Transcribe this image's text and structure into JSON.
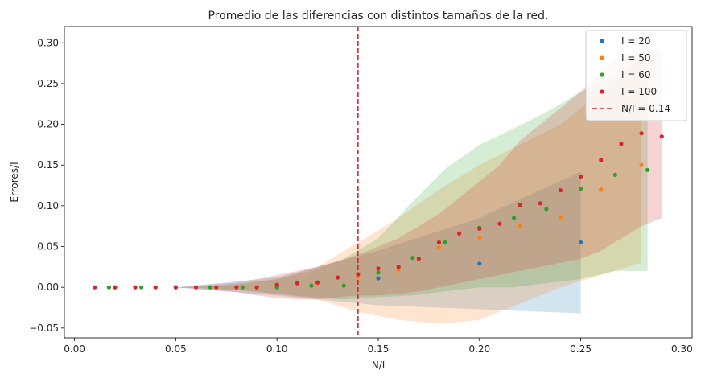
{
  "chart_data": {
    "type": "scatter",
    "title": "Promedio de las diferencias con distintos tamaños de la red.",
    "xlabel": "N/I",
    "ylabel": "Errores/I",
    "xlim": [
      -0.005,
      0.305
    ],
    "ylim": [
      -0.062,
      0.32
    ],
    "xticks": [
      0.0,
      0.05,
      0.1,
      0.15,
      0.2,
      0.25,
      0.3
    ],
    "xtick_labels": [
      "0.00",
      "0.05",
      "0.10",
      "0.15",
      "0.20",
      "0.25",
      "0.30"
    ],
    "yticks": [
      -0.05,
      0.0,
      0.05,
      0.1,
      0.15,
      0.2,
      0.25,
      0.3
    ],
    "ytick_labels": [
      "−0.05",
      "0.00",
      "0.05",
      "0.10",
      "0.15",
      "0.20",
      "0.25",
      "0.30"
    ],
    "grid": false,
    "legend_position": "top-right",
    "series": [
      {
        "name": "I = 20",
        "color": "#1f77b4",
        "band_color": "#1f77b4",
        "x": [
          0.05,
          0.1,
          0.15,
          0.2,
          0.25
        ],
        "y": [
          0.0,
          0.001,
          0.011,
          0.029,
          0.055
        ],
        "band_upper": [
          0.0,
          0.012,
          0.045,
          0.085,
          0.142
        ],
        "band_lower": [
          0.0,
          -0.01,
          -0.022,
          -0.027,
          -0.032
        ]
      },
      {
        "name": "I = 50",
        "color": "#ff7f0e",
        "band_color": "#ff7f0e",
        "x": [
          0.02,
          0.04,
          0.06,
          0.08,
          0.1,
          0.12,
          0.14,
          0.16,
          0.18,
          0.2,
          0.22,
          0.24,
          0.26,
          0.28
        ],
        "y": [
          0.0,
          0.0,
          0.0,
          0.0,
          0.001,
          0.005,
          0.013,
          0.021,
          0.049,
          0.061,
          0.075,
          0.086,
          0.12,
          0.15
        ],
        "band_upper": [
          0.0,
          0.0,
          0.0,
          0.003,
          0.01,
          0.025,
          0.055,
          0.085,
          0.12,
          0.15,
          0.175,
          0.2,
          0.24,
          0.28
        ],
        "band_lower": [
          0.0,
          0.0,
          0.0,
          -0.003,
          -0.008,
          -0.015,
          -0.03,
          -0.04,
          -0.045,
          -0.04,
          -0.02,
          0.0,
          0.015,
          0.03
        ]
      },
      {
        "name": "I = 60",
        "color": "#2ca02c",
        "band_color": "#2ca02c",
        "x": [
          0.017,
          0.033,
          0.05,
          0.067,
          0.083,
          0.1,
          0.117,
          0.133,
          0.15,
          0.167,
          0.183,
          0.2,
          0.217,
          0.233,
          0.25,
          0.267,
          0.283
        ],
        "y": [
          0.0,
          0.0,
          0.0,
          0.0,
          0.0,
          0.0,
          0.002,
          0.002,
          0.018,
          0.036,
          0.055,
          0.073,
          0.085,
          0.096,
          0.121,
          0.138,
          0.144
        ],
        "band_upper": [
          0.0,
          0.0,
          0.0,
          0.002,
          0.005,
          0.01,
          0.02,
          0.035,
          0.06,
          0.105,
          0.145,
          0.175,
          0.195,
          0.215,
          0.24,
          0.26,
          0.285
        ],
        "band_lower": [
          0.0,
          0.0,
          0.0,
          -0.002,
          -0.004,
          -0.008,
          -0.012,
          -0.015,
          -0.012,
          -0.01,
          -0.005,
          0.0,
          0.0,
          0.005,
          0.01,
          0.02,
          0.02
        ]
      },
      {
        "name": "I = 100",
        "color": "#d62728",
        "band_color": "#d62728",
        "x": [
          0.01,
          0.02,
          0.03,
          0.04,
          0.05,
          0.06,
          0.07,
          0.08,
          0.09,
          0.1,
          0.11,
          0.12,
          0.13,
          0.14,
          0.15,
          0.16,
          0.17,
          0.18,
          0.19,
          0.2,
          0.21,
          0.22,
          0.23,
          0.24,
          0.25,
          0.26,
          0.27,
          0.28,
          0.29
        ],
        "y": [
          0.0,
          0.0,
          0.0,
          0.0,
          0.0,
          0.0,
          0.0,
          0.0,
          0.0,
          0.003,
          0.005,
          0.006,
          0.012,
          0.016,
          0.023,
          0.025,
          0.035,
          0.055,
          0.066,
          0.072,
          0.078,
          0.101,
          0.103,
          0.119,
          0.136,
          0.156,
          0.176,
          0.189,
          0.185
        ],
        "band_upper": [
          0.0,
          0.0,
          0.0,
          0.0,
          0.0,
          0.002,
          0.004,
          0.006,
          0.01,
          0.015,
          0.02,
          0.025,
          0.032,
          0.04,
          0.05,
          0.06,
          0.075,
          0.09,
          0.11,
          0.13,
          0.15,
          0.18,
          0.2,
          0.22,
          0.24,
          0.265,
          0.285,
          0.29,
          0.29
        ],
        "band_lower": [
          0.0,
          0.0,
          0.0,
          0.0,
          0.0,
          -0.002,
          -0.004,
          -0.006,
          -0.01,
          -0.013,
          -0.015,
          -0.015,
          -0.012,
          -0.01,
          -0.01,
          -0.008,
          -0.005,
          0.0,
          0.005,
          0.01,
          0.015,
          0.02,
          0.025,
          0.03,
          0.035,
          0.045,
          0.06,
          0.075,
          0.085
        ]
      }
    ],
    "reference_line": {
      "name": "N/I = 0.14",
      "x": 0.14,
      "color": "#d62728",
      "style": "dashed"
    }
  }
}
